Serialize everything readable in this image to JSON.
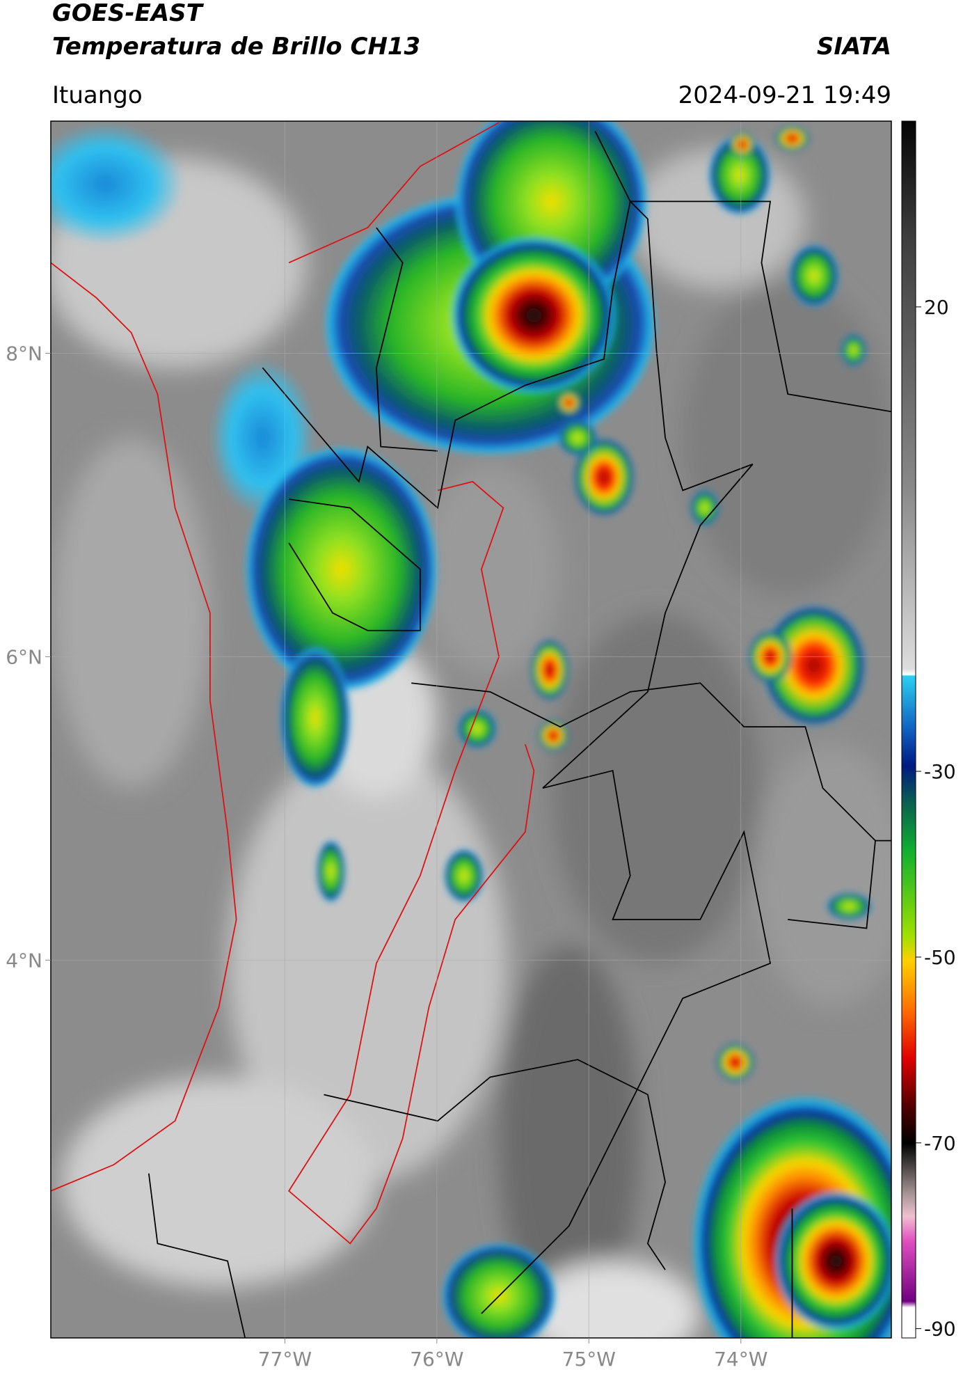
{
  "header": {
    "satellite": "GOES-EAST",
    "product": "Temperatura de Brillo CH13",
    "source": "SIATA",
    "location": "Ituango",
    "timestamp": "2024-09-21 19:49"
  },
  "map": {
    "xlim": [
      -78.54,
      -73.01
    ],
    "ylim": [
      1.51,
      9.53
    ],
    "xticks": [
      {
        "value": -77,
        "label": "77°W"
      },
      {
        "value": -76,
        "label": "76°W"
      },
      {
        "value": -75,
        "label": "75°W"
      },
      {
        "value": -74,
        "label": "74°W"
      }
    ],
    "yticks": [
      {
        "value": 8,
        "label": "8°N"
      },
      {
        "value": 6,
        "label": "6°N"
      },
      {
        "value": 4,
        "label": "4°N"
      }
    ],
    "grid": true
  },
  "colorbar": {
    "clim": [
      -91,
      40
    ],
    "ticks": [
      20,
      -30,
      -50,
      -70,
      -90
    ]
  }
}
